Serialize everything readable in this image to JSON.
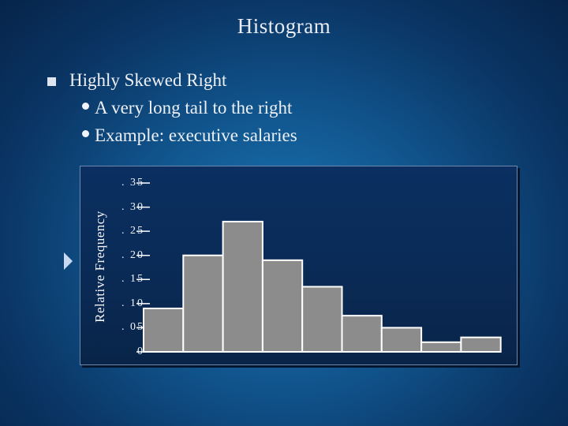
{
  "slide": {
    "title": "Histogram",
    "bullet": "Highly Skewed Right",
    "sub_bullets": [
      "A very long tail to the right",
      "Example:  executive salaries"
    ]
  },
  "chart_data": {
    "type": "bar",
    "title": "",
    "xlabel": "",
    "ylabel": "Relative Frequency",
    "ylim": [
      0,
      0.35
    ],
    "yticks": [
      0,
      0.05,
      0.1,
      0.15,
      0.2,
      0.25,
      0.3,
      0.35
    ],
    "ytick_labels": [
      "0",
      ". 05",
      ". 10",
      ". 15",
      ". 20",
      ". 25",
      ". 30",
      ". 35"
    ],
    "grid": false,
    "series": [
      {
        "values": [
          0.09,
          0.2,
          0.27,
          0.19,
          0.135,
          0.075,
          0.05,
          0.02,
          0.03
        ]
      }
    ]
  },
  "colors": {
    "bar_fill": "#8c8c8c",
    "bar_edge": "#ffffff",
    "background": "#11568f"
  }
}
